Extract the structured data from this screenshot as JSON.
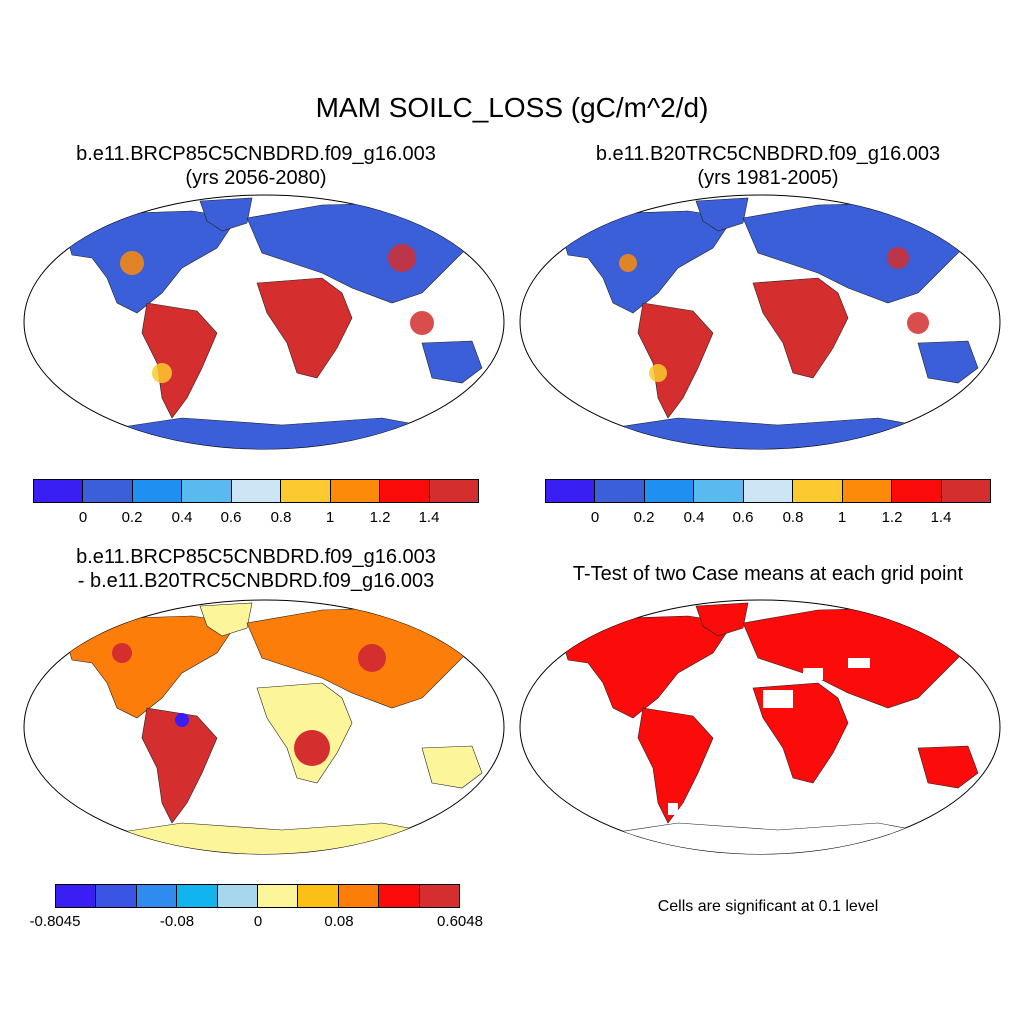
{
  "title": "MAM SOILC_LOSS (gC/m^2/d)",
  "panels": [
    {
      "line1": "b.e11.BRCP85C5CNBDRD.f09_g16.003",
      "line2": "(yrs 2056-2080)"
    },
    {
      "line1": "b.e11.B20TRC5CNBDRD.f09_g16.003",
      "line2": "(yrs 1981-2005)"
    },
    {
      "line1": "b.e11.BRCP85C5CNBDRD.f09_g16.003",
      "line2": "- b.e11.B20TRC5CNBDRD.f09_g16.003"
    },
    {
      "line1": "T-Test of two Case means at each grid point"
    }
  ],
  "colorbar_abs": {
    "colors": [
      "#3a1ff5",
      "#3a5fd9",
      "#1f8ff0",
      "#5ab9ee",
      "#cce6f5",
      "#fcc92e",
      "#fd8b09",
      "#fc0b0b",
      "#d42e2e"
    ],
    "ticks": [
      "0",
      "0.2",
      "0.4",
      "0.6",
      "0.8",
      "1",
      "1.2",
      "1.4"
    ]
  },
  "colorbar_diff": {
    "colors": [
      "#3a1ff5",
      "#3a55e6",
      "#2f8cee",
      "#12b4f0",
      "#a7d7ee",
      "#fdf59a",
      "#fcbf16",
      "#fc7d09",
      "#fc0b0b",
      "#d42e2e"
    ],
    "ticks": [
      "-0.8045",
      "-0.08",
      "0",
      "0.08",
      "0.6048"
    ]
  },
  "significance_note": "Cells are significant at 0.1 level"
}
